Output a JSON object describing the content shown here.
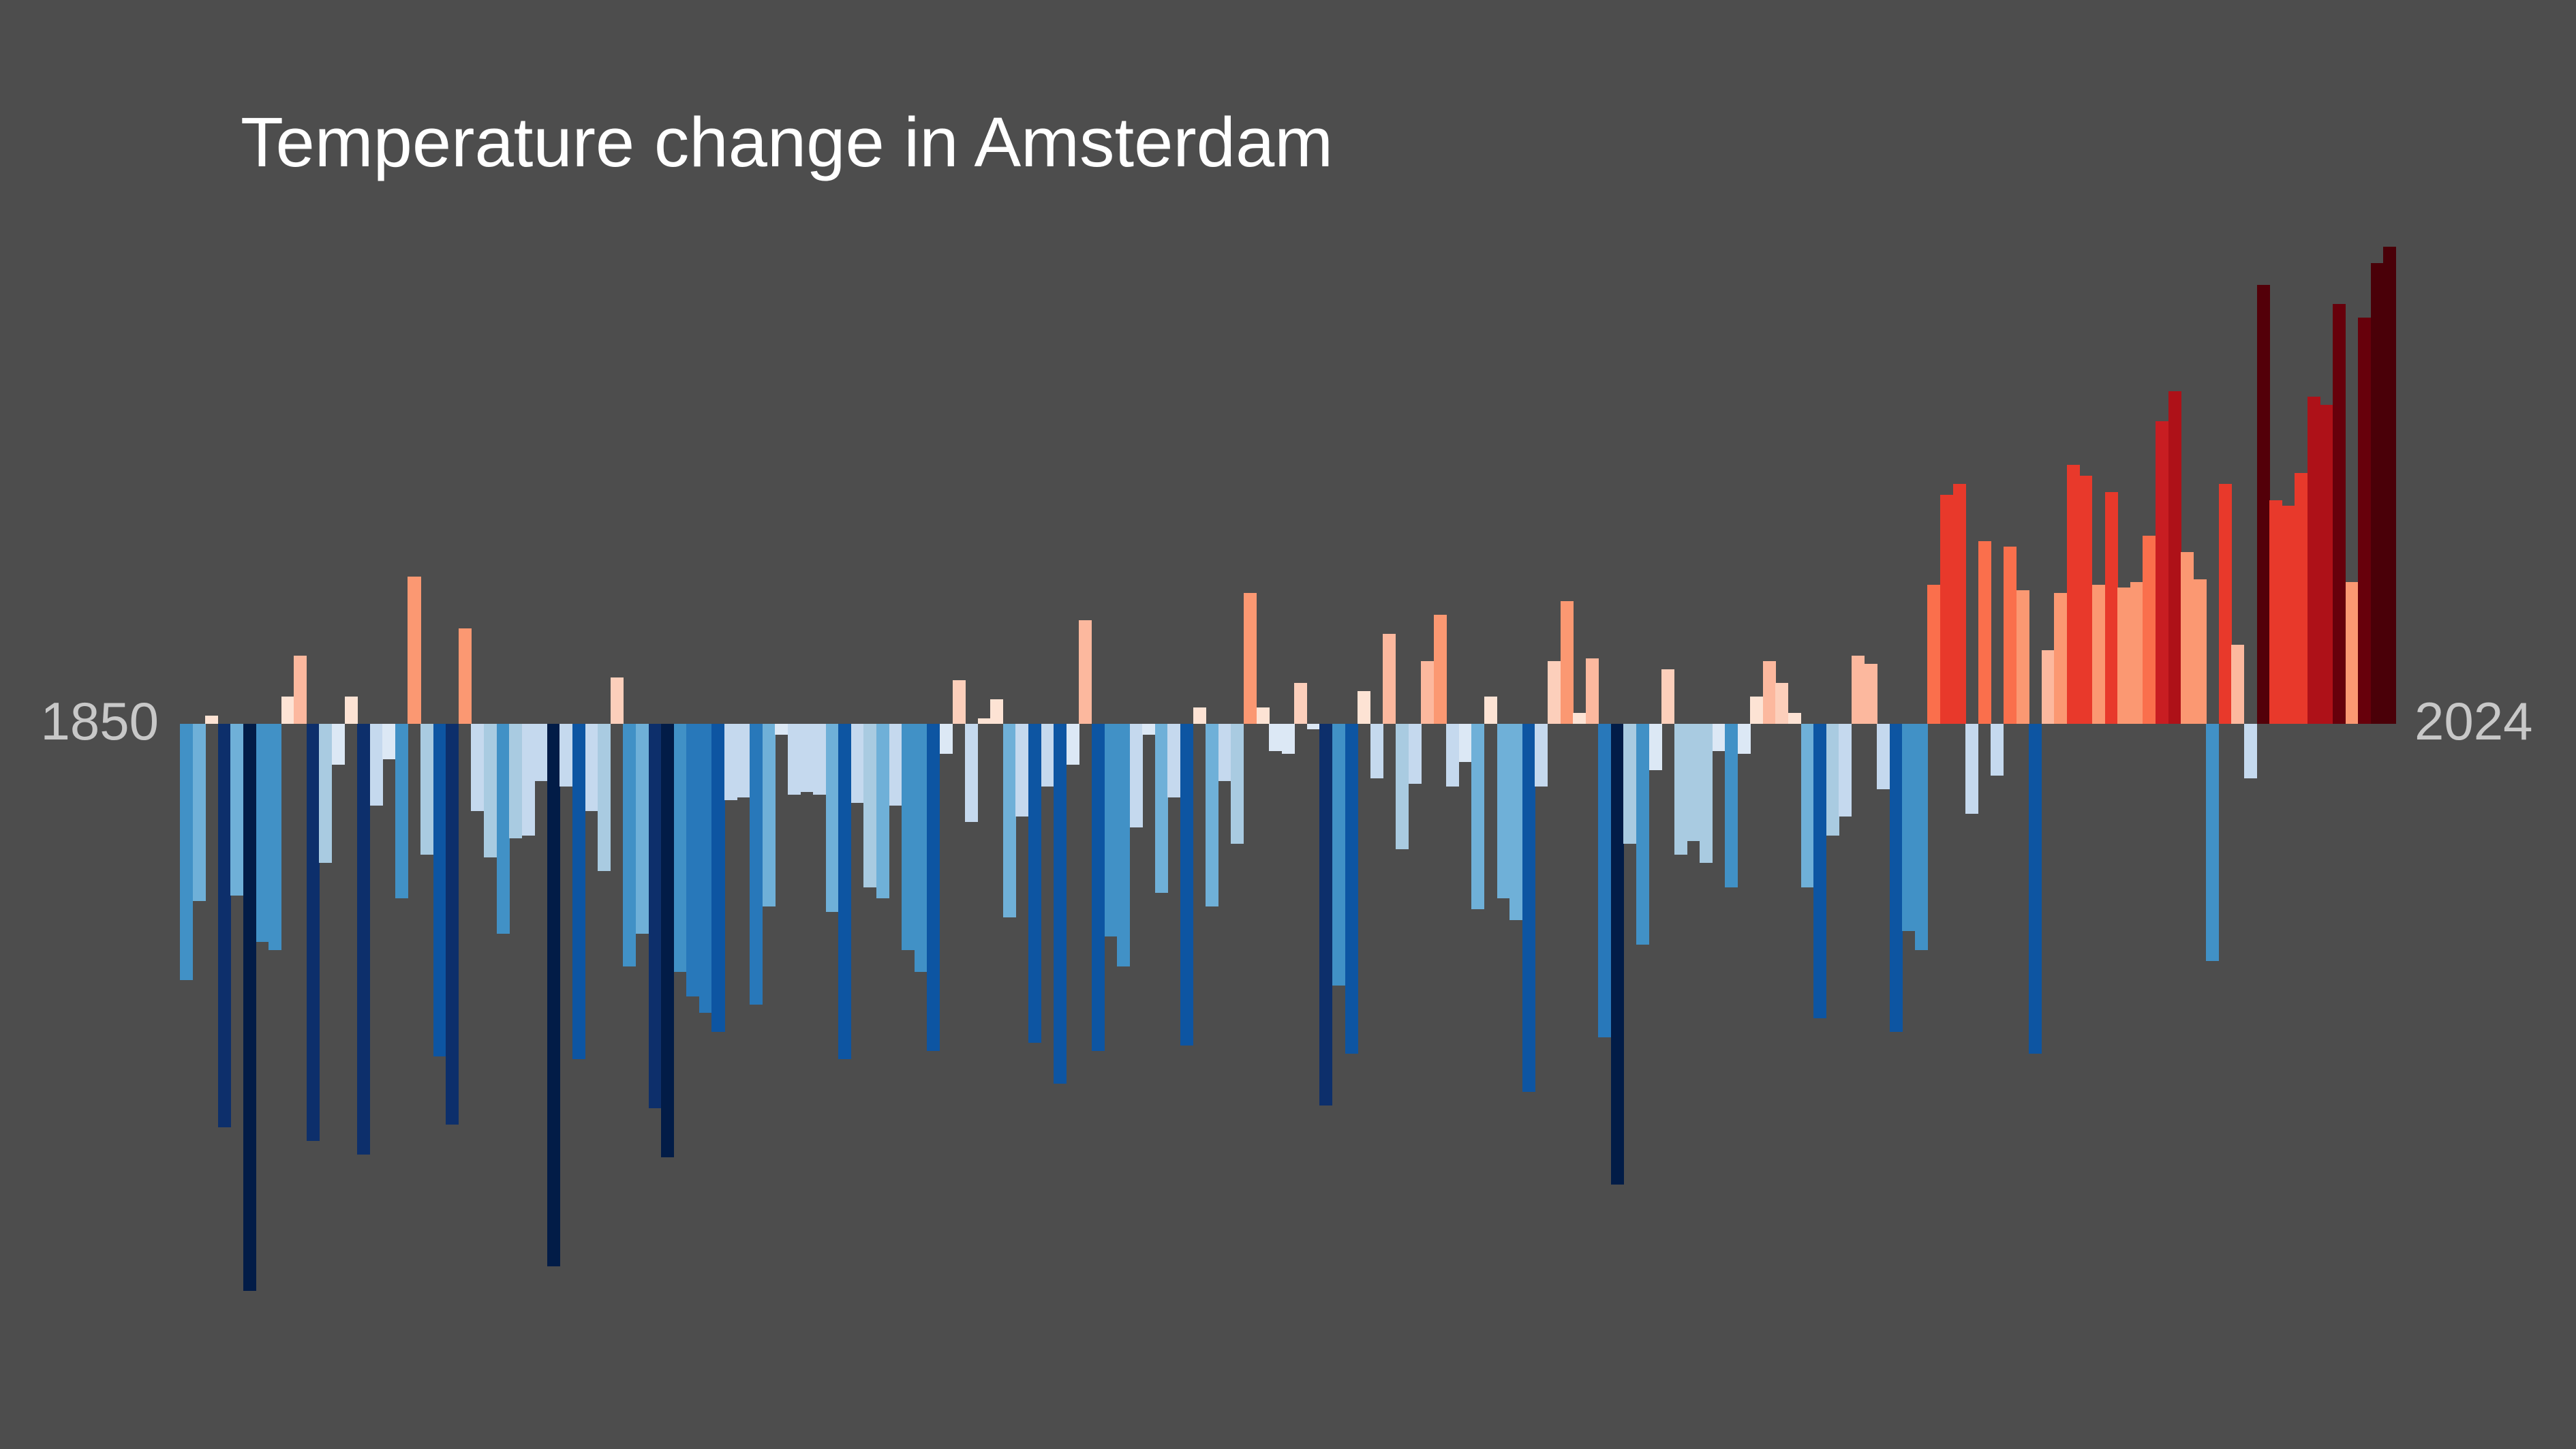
{
  "background_color": "#4d4d4d",
  "title": {
    "text": "Temperature change in Amsterdam",
    "color": "#ffffff"
  },
  "axis": {
    "start_label": "1850",
    "end_label": "2024",
    "label_color": "#c8c8c8"
  },
  "chart_data": {
    "type": "bar",
    "title": "Temperature change in Amsterdam",
    "xlabel": "",
    "ylabel": "",
    "x_axis_tick_labels": [
      "1850",
      "2024"
    ],
    "ylim": [
      -2.2,
      1.9
    ],
    "grid": false,
    "legend": false,
    "baseline_value": 0,
    "palette": {
      "negative": [
        "#dce8f5",
        "#c5d9ee",
        "#a9cbe1",
        "#6fb0d8",
        "#4191c6",
        "#2878ba",
        "#0d55a2",
        "#0d2f6b",
        "#021c47"
      ],
      "positive": [
        "#fde3d4",
        "#fccfbb",
        "#fcb89e",
        "#fb9872",
        "#fa6f4c",
        "#e8392b",
        "#c81d22",
        "#ae1118",
        "#67000b",
        "#530009",
        "#4a0008"
      ]
    },
    "series": [
      {
        "name": "Annual temperature anomaly",
        "points": [
          [
            1850,
            -0.94,
            "b4"
          ],
          [
            1851,
            -0.65,
            "b3"
          ],
          [
            1852,
            0.03,
            "r0"
          ],
          [
            1853,
            -1.48,
            "b7"
          ],
          [
            1854,
            -0.63,
            "b3"
          ],
          [
            1855,
            -2.08,
            "b8"
          ],
          [
            1856,
            -0.8,
            "b4"
          ],
          [
            1857,
            -0.83,
            "b4"
          ],
          [
            1858,
            0.1,
            "r0"
          ],
          [
            1859,
            0.25,
            "r2"
          ],
          [
            1860,
            -1.53,
            "b7"
          ],
          [
            1861,
            -0.51,
            "b2"
          ],
          [
            1862,
            -0.15,
            "b0"
          ],
          [
            1863,
            0.1,
            "r0"
          ],
          [
            1864,
            -1.58,
            "b7"
          ],
          [
            1865,
            -0.3,
            "b1"
          ],
          [
            1866,
            -0.13,
            "b0"
          ],
          [
            1867,
            -0.64,
            "b4"
          ],
          [
            1868,
            0.54,
            "r3"
          ],
          [
            1869,
            -0.48,
            "b2"
          ],
          [
            1870,
            -1.22,
            "b6"
          ],
          [
            1871,
            -1.47,
            "b7"
          ],
          [
            1872,
            0.35,
            "r3"
          ],
          [
            1873,
            -0.32,
            "b1"
          ],
          [
            1874,
            -0.49,
            "b2"
          ],
          [
            1875,
            -0.77,
            "b4"
          ],
          [
            1876,
            -0.42,
            "b2"
          ],
          [
            1877,
            -0.41,
            "b1"
          ],
          [
            1878,
            -0.21,
            "b1"
          ],
          [
            1879,
            -1.99,
            "b8"
          ],
          [
            1880,
            -0.23,
            "b1"
          ],
          [
            1881,
            -1.23,
            "b6"
          ],
          [
            1882,
            -0.32,
            "b1"
          ],
          [
            1883,
            -0.54,
            "b2"
          ],
          [
            1884,
            0.17,
            "r1"
          ],
          [
            1885,
            -0.89,
            "b4"
          ],
          [
            1886,
            -0.77,
            "b3"
          ],
          [
            1887,
            -1.41,
            "b7"
          ],
          [
            1888,
            -1.59,
            "b8"
          ],
          [
            1889,
            -0.91,
            "b4"
          ],
          [
            1890,
            -1.0,
            "b5"
          ],
          [
            1891,
            -1.06,
            "b5"
          ],
          [
            1892,
            -1.13,
            "b6"
          ],
          [
            1893,
            -0.28,
            "b1"
          ],
          [
            1894,
            -0.27,
            "b1"
          ],
          [
            1895,
            -1.03,
            "b5"
          ],
          [
            1896,
            -0.67,
            "b3"
          ],
          [
            1897,
            -0.04,
            "b0"
          ],
          [
            1898,
            -0.26,
            "b1"
          ],
          [
            1899,
            -0.25,
            "b1"
          ],
          [
            1900,
            -0.26,
            "b1"
          ],
          [
            1901,
            -0.69,
            "b3"
          ],
          [
            1902,
            -1.23,
            "b6"
          ],
          [
            1903,
            -0.29,
            "b1"
          ],
          [
            1904,
            -0.6,
            "b2"
          ],
          [
            1905,
            -0.64,
            "b3"
          ],
          [
            1906,
            -0.3,
            "b1"
          ],
          [
            1907,
            -0.83,
            "b4"
          ],
          [
            1908,
            -0.91,
            "b4"
          ],
          [
            1909,
            -1.2,
            "b6"
          ],
          [
            1910,
            -0.11,
            "b0"
          ],
          [
            1911,
            0.16,
            "r1"
          ],
          [
            1912,
            -0.36,
            "b1"
          ],
          [
            1913,
            0.02,
            "r0"
          ],
          [
            1914,
            0.09,
            "r0"
          ],
          [
            1915,
            -0.71,
            "b3"
          ],
          [
            1916,
            -0.34,
            "b1"
          ],
          [
            1917,
            -1.17,
            "b6"
          ],
          [
            1918,
            -0.23,
            "b1"
          ],
          [
            1919,
            -1.32,
            "b6"
          ],
          [
            1920,
            -0.15,
            "b0"
          ],
          [
            1921,
            0.38,
            "r2"
          ],
          [
            1922,
            -1.2,
            "b6"
          ],
          [
            1923,
            -0.78,
            "b4"
          ],
          [
            1924,
            -0.89,
            "b4"
          ],
          [
            1925,
            -0.38,
            "b1"
          ],
          [
            1926,
            -0.04,
            "b0"
          ],
          [
            1927,
            -0.62,
            "b3"
          ],
          [
            1928,
            -0.27,
            "b1"
          ],
          [
            1929,
            -1.18,
            "b6"
          ],
          [
            1930,
            0.06,
            "r0"
          ],
          [
            1931,
            -0.67,
            "b3"
          ],
          [
            1932,
            -0.21,
            "b1"
          ],
          [
            1933,
            -0.44,
            "b2"
          ],
          [
            1934,
            0.48,
            "r3"
          ],
          [
            1935,
            0.06,
            "r0"
          ],
          [
            1936,
            -0.1,
            "b0"
          ],
          [
            1937,
            -0.11,
            "b0"
          ],
          [
            1938,
            0.15,
            "r1"
          ],
          [
            1939,
            -0.02,
            "b0"
          ],
          [
            1940,
            -1.4,
            "b7"
          ],
          [
            1941,
            -0.96,
            "b4"
          ],
          [
            1942,
            -1.21,
            "b6"
          ],
          [
            1943,
            0.12,
            "r0"
          ],
          [
            1944,
            -0.2,
            "b1"
          ],
          [
            1945,
            0.33,
            "r2"
          ],
          [
            1946,
            -0.46,
            "b2"
          ],
          [
            1947,
            -0.22,
            "b1"
          ],
          [
            1948,
            0.23,
            "r2"
          ],
          [
            1949,
            0.4,
            "r3"
          ],
          [
            1950,
            -0.23,
            "b1"
          ],
          [
            1951,
            -0.14,
            "b0"
          ],
          [
            1952,
            -0.68,
            "b3"
          ],
          [
            1953,
            0.1,
            "r0"
          ],
          [
            1954,
            -0.64,
            "b3"
          ],
          [
            1955,
            -0.72,
            "b3"
          ],
          [
            1956,
            -1.35,
            "b6"
          ],
          [
            1957,
            -0.23,
            "b1"
          ],
          [
            1958,
            0.23,
            "r1"
          ],
          [
            1959,
            0.45,
            "r3"
          ],
          [
            1960,
            0.04,
            "r0"
          ],
          [
            1961,
            0.24,
            "r2"
          ],
          [
            1962,
            -1.15,
            "b5"
          ],
          [
            1963,
            -1.69,
            "b8"
          ],
          [
            1964,
            -0.44,
            "b2"
          ],
          [
            1965,
            -0.81,
            "b4"
          ],
          [
            1966,
            -0.17,
            "b0"
          ],
          [
            1967,
            0.2,
            "r1"
          ],
          [
            1968,
            -0.48,
            "b2"
          ],
          [
            1969,
            -0.43,
            "b2"
          ],
          [
            1970,
            -0.51,
            "b2"
          ],
          [
            1971,
            -0.1,
            "b0"
          ],
          [
            1972,
            -0.6,
            "b4"
          ],
          [
            1973,
            -0.11,
            "b0"
          ],
          [
            1974,
            0.1,
            "r0"
          ],
          [
            1975,
            0.23,
            "r2"
          ],
          [
            1976,
            0.15,
            "r1"
          ],
          [
            1977,
            0.04,
            "r0"
          ],
          [
            1978,
            -0.6,
            "b3"
          ],
          [
            1979,
            -1.08,
            "b6"
          ],
          [
            1980,
            -0.41,
            "b2"
          ],
          [
            1981,
            -0.34,
            "b1"
          ],
          [
            1982,
            0.25,
            "r2"
          ],
          [
            1983,
            0.22,
            "r2"
          ],
          [
            1984,
            -0.24,
            "b1"
          ],
          [
            1985,
            -1.13,
            "b6"
          ],
          [
            1986,
            -0.76,
            "b4"
          ],
          [
            1987,
            -0.83,
            "b4"
          ],
          [
            1988,
            0.51,
            "r4"
          ],
          [
            1989,
            0.84,
            "r5"
          ],
          [
            1990,
            0.88,
            "r5"
          ],
          [
            1991,
            -0.33,
            "b1"
          ],
          [
            1992,
            0.67,
            "r4"
          ],
          [
            1993,
            -0.19,
            "b1"
          ],
          [
            1994,
            0.65,
            "r4"
          ],
          [
            1995,
            0.49,
            "r3"
          ],
          [
            1996,
            -1.21,
            "b6"
          ],
          [
            1997,
            0.27,
            "r2"
          ],
          [
            1998,
            0.48,
            "r3"
          ],
          [
            1999,
            0.95,
            "r5"
          ],
          [
            2000,
            0.91,
            "r5"
          ],
          [
            2001,
            0.51,
            "r3"
          ],
          [
            2002,
            0.85,
            "r5"
          ],
          [
            2003,
            0.5,
            "r3"
          ],
          [
            2004,
            0.52,
            "r3"
          ],
          [
            2005,
            0.69,
            "r4"
          ],
          [
            2006,
            1.11,
            "r6"
          ],
          [
            2007,
            1.22,
            "r7"
          ],
          [
            2008,
            0.63,
            "r3"
          ],
          [
            2009,
            0.53,
            "r3"
          ],
          [
            2010,
            -0.87,
            "b4"
          ],
          [
            2011,
            0.88,
            "r5"
          ],
          [
            2012,
            0.29,
            "r2"
          ],
          [
            2013,
            -0.2,
            "b1"
          ],
          [
            2014,
            1.61,
            "r9"
          ],
          [
            2015,
            0.82,
            "r5"
          ],
          [
            2016,
            0.8,
            "r5"
          ],
          [
            2017,
            0.92,
            "r5"
          ],
          [
            2018,
            1.2,
            "r7"
          ],
          [
            2019,
            1.17,
            "r7"
          ],
          [
            2020,
            1.54,
            "r8"
          ],
          [
            2021,
            0.52,
            "r3"
          ],
          [
            2022,
            1.49,
            "r8"
          ],
          [
            2023,
            1.69,
            "r10"
          ],
          [
            2024,
            1.75,
            "r10"
          ]
        ]
      }
    ]
  }
}
